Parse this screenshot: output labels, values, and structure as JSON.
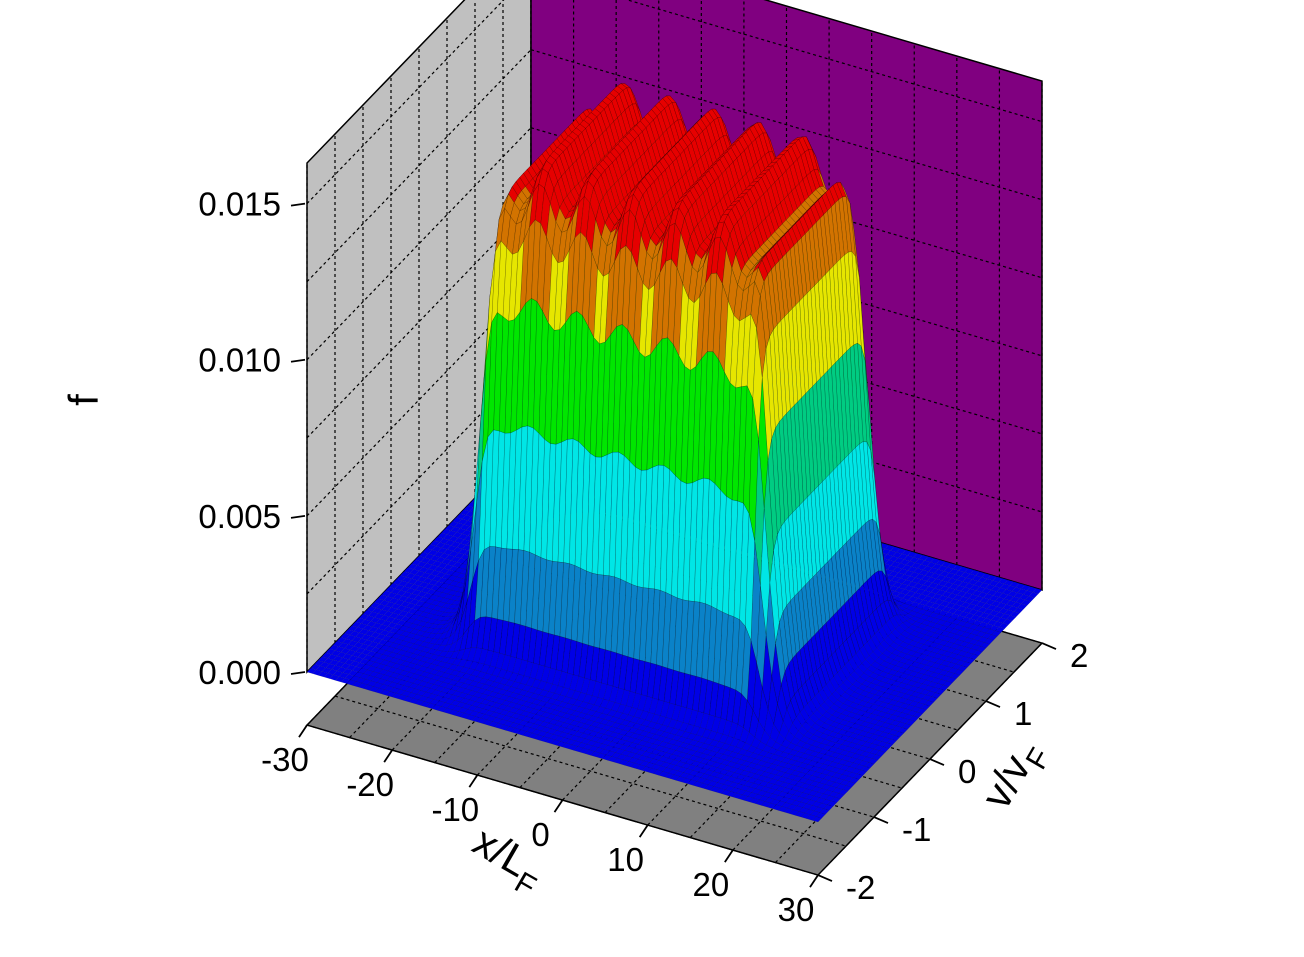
{
  "chart_data": {
    "type": "surface3d",
    "title": "",
    "xlabel": {
      "main": "x/L",
      "sub": "F"
    },
    "ylabel": {
      "main": "v/v",
      "sub": "F"
    },
    "zlabel": "f",
    "xlim": [
      -30,
      30
    ],
    "ylim": [
      -2,
      2
    ],
    "zlim": [
      0,
      0.016
    ],
    "x_ticks": [
      -30,
      -20,
      -10,
      0,
      10,
      20,
      30
    ],
    "x_tick_labels": [
      "-30",
      "-20",
      "-10",
      "0",
      "10",
      "20",
      "30"
    ],
    "y_ticks": [
      -2,
      -1,
      0,
      1,
      2
    ],
    "y_tick_labels": [
      "-2",
      "-1",
      "0",
      "1",
      "2"
    ],
    "z_ticks": [
      0,
      0.005,
      0.01,
      0.015
    ],
    "z_tick_labels": [
      "0.000",
      "0.005",
      "0.010",
      "0.015"
    ],
    "surface": {
      "description_values": "flat-top plateau of f over |x/L_F| < ~17 and |v/v_F| < ~1, with ripples near the top",
      "plateau_x_range": [
        -17,
        17
      ],
      "plateau_v_range": [
        -1,
        1
      ],
      "peak_value": 0.0158,
      "plateau_value": 0.0148,
      "base_value": 0.0
    },
    "contour_levels": [
      0.0,
      0.002,
      0.004,
      0.006,
      0.008,
      0.01,
      0.012,
      0.014
    ],
    "contour_colors": [
      "#0000e6",
      "#0a82c8",
      "#00e6e6",
      "#00cc82",
      "#00e600",
      "#e6e600",
      "#d27300",
      "#e60000"
    ],
    "grid": true,
    "wall_colors": {
      "left": "#c0c0c0",
      "back": "#800080",
      "floor": "#808080"
    }
  }
}
